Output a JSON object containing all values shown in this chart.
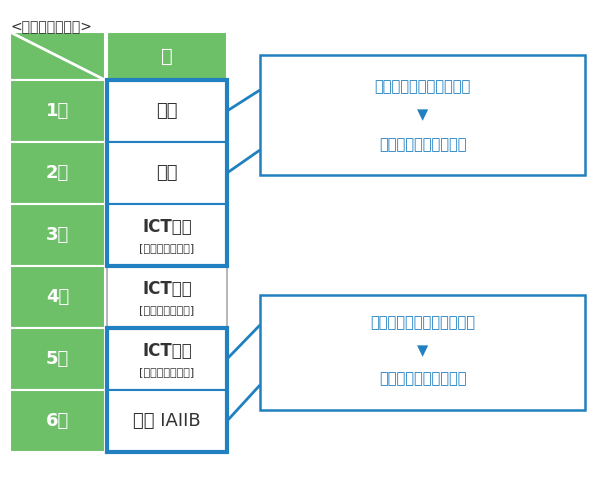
{
  "title": "<理系コースの例>",
  "green_color": "#6dc067",
  "white": "#ffffff",
  "blue_border": "#2080c0",
  "blue_text": "#2080c0",
  "gray_border": "#aaaaaa",
  "black": "#333333",
  "row_labels": [
    "1限",
    "2限",
    "3限",
    "4限",
    "5限",
    "6限"
  ],
  "col_label": "月",
  "cell_contents": [
    {
      "line1": "化学",
      "line2": "",
      "highlighted": true
    },
    {
      "line1": "化学",
      "line2": "",
      "highlighted": true
    },
    {
      "line1": "ICT化学",
      "line2": "[講師コーチング]",
      "highlighted": true
    },
    {
      "line1": "ICT英語",
      "line2": "[担任コーチング]",
      "highlighted": false
    },
    {
      "line1": "ICT数学",
      "line2": "[講師コーチング]",
      "highlighted": true
    },
    {
      "line1": "数学 IAIIB",
      "line2": "",
      "highlighted": true
    }
  ],
  "annotation1_lines": [
    "授業内容をその場で演習",
    "▼",
    "その日のうちに定着！"
  ],
  "annotation2_lines": [
    "基礎を確認してからの授業",
    "▼",
    "授業の理解度アップ！"
  ],
  "bg_color": "#ffffff",
  "blue_group1": [
    0,
    1,
    2
  ],
  "blue_group2": [
    4,
    5
  ]
}
